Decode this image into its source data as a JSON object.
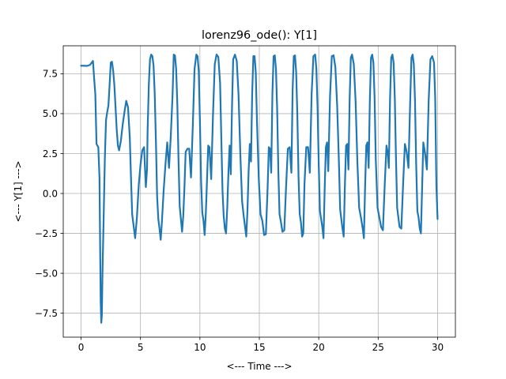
{
  "chart_data": {
    "type": "line",
    "title": "lorenz96_ode(): Y[1]",
    "xlabel": "<--- Time --->",
    "ylabel": "<--- Y[1] --->",
    "xlim": [
      -1.5,
      31.5
    ],
    "ylim": [
      -9.0,
      9.25
    ],
    "xticks": [
      0,
      5,
      10,
      15,
      20,
      25,
      30
    ],
    "xtick_labels": [
      "0",
      "5",
      "10",
      "15",
      "20",
      "25",
      "30"
    ],
    "yticks": [
      -7.5,
      -5.0,
      -2.5,
      0.0,
      2.5,
      5.0,
      7.5
    ],
    "ytick_labels": [
      "−7.5",
      "−5.0",
      "−2.5",
      "0.0",
      "2.5",
      "5.0",
      "7.5"
    ],
    "grid": true,
    "color": "#1f77b4",
    "series": [
      {
        "x": [
          0.0,
          0.25,
          0.5,
          0.75,
          0.9,
          1.0,
          1.1,
          1.2,
          1.3,
          1.45,
          1.55,
          1.6,
          1.65,
          1.7,
          1.75,
          1.8,
          1.9,
          2.0,
          2.1,
          2.2,
          2.3,
          2.4,
          2.5,
          2.6,
          2.7,
          2.8,
          2.9,
          3.0,
          3.1,
          3.2,
          3.35,
          3.5,
          3.65,
          3.8,
          3.95,
          4.1,
          4.2,
          4.3,
          4.4,
          4.55,
          4.7,
          4.85,
          5.0,
          5.15,
          5.3,
          5.45,
          5.55,
          5.6,
          5.7,
          5.8,
          5.9,
          6.0,
          6.1,
          6.2,
          6.3,
          6.4,
          6.5,
          6.6,
          6.7,
          6.8,
          6.95,
          7.1,
          7.25,
          7.4,
          7.55,
          7.7,
          7.8,
          7.9,
          8.0,
          8.1,
          8.2,
          8.3,
          8.4,
          8.5,
          8.6,
          8.7,
          8.8,
          8.95,
          9.1,
          9.25,
          9.4,
          9.55,
          9.7,
          9.8,
          9.9,
          10.0,
          10.1,
          10.2,
          10.3,
          10.4,
          10.5,
          10.6,
          10.7,
          10.8,
          10.95,
          11.1,
          11.25,
          11.4,
          11.55,
          11.7,
          11.8,
          11.9,
          12.0,
          12.1,
          12.2,
          12.3,
          12.4,
          12.5,
          12.6,
          12.7,
          12.8,
          12.95,
          13.1,
          13.25,
          13.4,
          13.55,
          13.7,
          13.8,
          13.9,
          14.0,
          14.1,
          14.2,
          14.3,
          14.4,
          14.5,
          14.6,
          14.7,
          14.8,
          14.95,
          15.1,
          15.25,
          15.4,
          15.55,
          15.7,
          15.8,
          15.9,
          16.0,
          16.1,
          16.2,
          16.3,
          16.4,
          16.5,
          16.6,
          16.7,
          16.8,
          16.95,
          17.1,
          17.25,
          17.4,
          17.55,
          17.7,
          17.8,
          17.9,
          18.0,
          18.1,
          18.2,
          18.3,
          18.4,
          18.5,
          18.6,
          18.7,
          18.8,
          18.95,
          19.1,
          19.25,
          19.4,
          19.55,
          19.7,
          19.8,
          19.9,
          20.0,
          20.1,
          20.2,
          20.3,
          20.4,
          20.5,
          20.6,
          20.7,
          20.8,
          20.95,
          21.1,
          21.25,
          21.4,
          21.55,
          21.7,
          21.8,
          21.9,
          22.0,
          22.1,
          22.2,
          22.3,
          22.4,
          22.5,
          22.6,
          22.7,
          22.8,
          22.95,
          23.1,
          23.25,
          23.4,
          23.55,
          23.7,
          23.8,
          23.9,
          24.0,
          24.1,
          24.2,
          24.3,
          24.4,
          24.5,
          24.6,
          24.7,
          24.8,
          24.95,
          25.1,
          25.25,
          25.4,
          25.55,
          25.7,
          25.8,
          25.9,
          26.0,
          26.1,
          26.2,
          26.3,
          26.4,
          26.5,
          26.6,
          26.7,
          26.8,
          26.95,
          27.1,
          27.25,
          27.4,
          27.55,
          27.7,
          27.8,
          27.9,
          28.0,
          28.1,
          28.2,
          28.3,
          28.4,
          28.5,
          28.6,
          28.7,
          28.8,
          28.95,
          29.1,
          29.25,
          29.4,
          29.55,
          29.7,
          29.8,
          29.9,
          30.0
        ],
        "y": [
          8.0,
          8.0,
          7.99,
          8.05,
          8.2,
          8.3,
          7.2,
          6.2,
          3.1,
          2.9,
          1.0,
          -3.0,
          -6.8,
          -8.1,
          -7.6,
          -5.0,
          -1.5,
          2.2,
          4.6,
          5.1,
          5.5,
          6.8,
          8.2,
          8.25,
          7.7,
          6.8,
          5.4,
          4.0,
          3.0,
          2.7,
          3.3,
          4.3,
          5.1,
          5.8,
          5.4,
          3.5,
          1.0,
          -1.3,
          -1.9,
          -2.8,
          -1.5,
          0.5,
          1.8,
          2.7,
          2.9,
          0.4,
          1.5,
          4.0,
          6.8,
          8.4,
          8.7,
          8.6,
          8.0,
          6.2,
          3.2,
          -0.2,
          -1.6,
          -2.2,
          -2.9,
          -1.8,
          0.2,
          1.8,
          3.2,
          1.6,
          3.6,
          6.2,
          8.7,
          8.65,
          7.8,
          5.6,
          2.1,
          -0.8,
          -1.6,
          -2.4,
          -1.4,
          0.4,
          2.6,
          2.8,
          2.8,
          1.0,
          4.2,
          7.8,
          8.7,
          8.6,
          7.7,
          4.6,
          0.8,
          -1.2,
          -1.7,
          -2.6,
          -1.2,
          0.9,
          3.0,
          2.9,
          0.9,
          4.9,
          8.1,
          8.7,
          8.55,
          6.9,
          3.5,
          0.2,
          -1.4,
          -2.2,
          -2.5,
          -0.9,
          1.3,
          3.0,
          1.2,
          5.4,
          8.4,
          8.7,
          8.3,
          6.2,
          2.5,
          -0.5,
          -1.5,
          -2.1,
          -2.7,
          -1.1,
          1.4,
          3.1,
          2.0,
          6.3,
          8.6,
          8.6,
          7.6,
          4.6,
          1.0,
          -1.3,
          -1.7,
          -2.6,
          -2.55,
          0.4,
          2.9,
          2.8,
          1.3,
          6.2,
          8.6,
          8.65,
          7.8,
          5.3,
          1.4,
          -1.3,
          -1.7,
          -2.4,
          -2.3,
          0.4,
          2.8,
          2.9,
          1.3,
          6.4,
          8.6,
          8.65,
          7.6,
          4.9,
          1.0,
          -1.3,
          -1.8,
          -2.7,
          -2.5,
          0.6,
          2.9,
          2.9,
          1.3,
          6.2,
          8.6,
          8.7,
          7.8,
          5.4,
          1.8,
          -1.1,
          -1.6,
          -2.1,
          -2.8,
          0.3,
          2.9,
          3.2,
          1.4,
          6.1,
          8.6,
          8.65,
          7.9,
          5.5,
          1.9,
          -1.0,
          -1.6,
          -2.2,
          -2.7,
          0.5,
          3.0,
          3.1,
          1.5,
          5.9,
          8.5,
          8.7,
          8.1,
          5.8,
          2.0,
          -0.9,
          -1.5,
          -2.2,
          -2.8,
          0.4,
          3.0,
          3.2,
          1.6,
          5.8,
          8.5,
          8.7,
          8.2,
          6.0,
          2.1,
          -0.9,
          -1.5,
          -2.1,
          -2.3,
          0.5,
          3.0,
          2.6,
          1.6,
          5.9,
          8.5,
          8.7,
          8.2,
          6.0,
          2.2,
          -0.9,
          -1.5,
          -2.1,
          -2.2,
          0.6,
          3.1,
          2.6,
          1.6,
          5.9,
          8.5,
          8.7,
          8.1,
          5.8,
          1.8,
          -1.1,
          -1.5,
          -2.2,
          -2.5,
          0.4,
          3.2,
          2.5,
          1.5,
          5.8,
          8.4,
          8.6,
          8.2,
          6.0,
          0.5,
          -1.6
        ]
      }
    ]
  }
}
